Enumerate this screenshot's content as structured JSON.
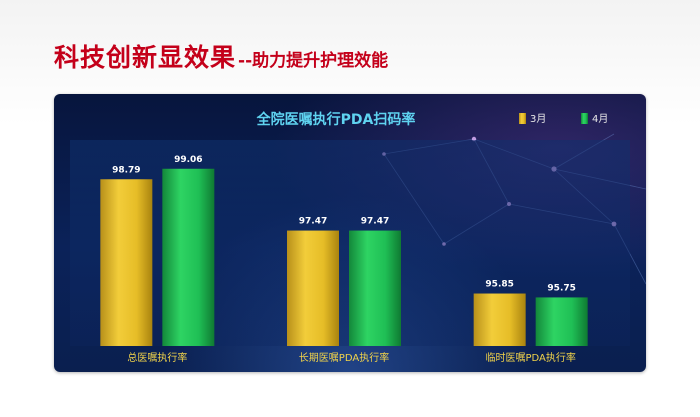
{
  "slide": {
    "title_main": "科技创新显效果",
    "title_sub": "--助力提升护理效能"
  },
  "colors": {
    "title_red": "#c4001a",
    "series_march": "#e9c22a",
    "series_april": "#1fbf55",
    "panel_bg": "#0b2259",
    "chart_title": "#5fd3f0"
  },
  "chart_data": {
    "type": "bar",
    "title": "全院医嘱执行PDA扫码率",
    "categories": [
      "总医嘱执行率",
      "长期医嘱PDA执行率",
      "临时医嘱PDA执行率"
    ],
    "series": [
      {
        "name": "3月",
        "values": [
          98.79,
          97.47,
          95.85
        ]
      },
      {
        "name": "4月",
        "values": [
          99.06,
          97.47,
          95.75
        ]
      }
    ],
    "value_labels": [
      [
        "98.79",
        "97.47",
        "95.85"
      ],
      [
        "99.06",
        "97.47",
        "95.75"
      ]
    ],
    "ylim": [
      94.5,
      99.8
    ],
    "grid": false,
    "legend_position": "top-right"
  }
}
